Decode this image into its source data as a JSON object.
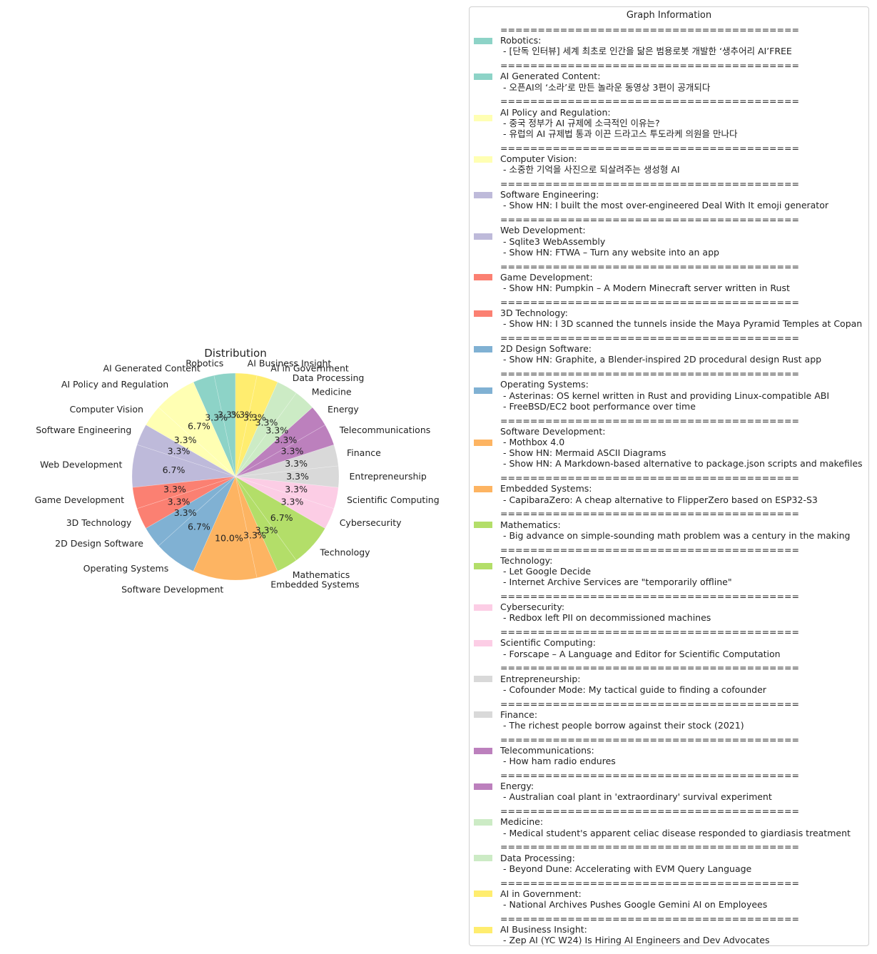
{
  "chart_data": {
    "type": "pie",
    "title": "Distribution",
    "start_angle_deg": 90,
    "direction": "counterclockwise",
    "slices": [
      {
        "label": "Robotics",
        "value": 1,
        "pct_label": "3.3%",
        "color": "#8dd3c7"
      },
      {
        "label": "AI Generated Content",
        "value": 1,
        "pct_label": "3.3%",
        "color": "#8dd3c7"
      },
      {
        "label": "AI Policy and Regulation",
        "value": 2,
        "pct_label": "6.7%",
        "color": "#ffffb3"
      },
      {
        "label": "Computer Vision",
        "value": 1,
        "pct_label": "3.3%",
        "color": "#ffffb3"
      },
      {
        "label": "Software Engineering",
        "value": 1,
        "pct_label": "3.3%",
        "color": "#bebada"
      },
      {
        "label": "Web Development",
        "value": 2,
        "pct_label": "6.7%",
        "color": "#bebada"
      },
      {
        "label": "Game Development",
        "value": 1,
        "pct_label": "3.3%",
        "color": "#fb8072"
      },
      {
        "label": "3D Technology",
        "value": 1,
        "pct_label": "3.3%",
        "color": "#fb8072"
      },
      {
        "label": "2D Design Software",
        "value": 1,
        "pct_label": "3.3%",
        "color": "#80b1d3"
      },
      {
        "label": "Operating Systems",
        "value": 2,
        "pct_label": "6.7%",
        "color": "#80b1d3"
      },
      {
        "label": "Software Development",
        "value": 3,
        "pct_label": "10.0%",
        "color": "#fdb462"
      },
      {
        "label": "Embedded Systems",
        "value": 1,
        "pct_label": "3.3%",
        "color": "#fdb462"
      },
      {
        "label": "Mathematics",
        "value": 1,
        "pct_label": "3.3%",
        "color": "#b3de69"
      },
      {
        "label": "Technology",
        "value": 2,
        "pct_label": "6.7%",
        "color": "#b3de69"
      },
      {
        "label": "Cybersecurity",
        "value": 1,
        "pct_label": "3.3%",
        "color": "#fccde5"
      },
      {
        "label": "Scientific Computing",
        "value": 1,
        "pct_label": "3.3%",
        "color": "#fccde5"
      },
      {
        "label": "Entrepreneurship",
        "value": 1,
        "pct_label": "3.3%",
        "color": "#d9d9d9"
      },
      {
        "label": "Finance",
        "value": 1,
        "pct_label": "3.3%",
        "color": "#d9d9d9"
      },
      {
        "label": "Telecommunications",
        "value": 1,
        "pct_label": "3.3%",
        "color": "#bc80bd"
      },
      {
        "label": "Energy",
        "value": 1,
        "pct_label": "3.3%",
        "color": "#bc80bd"
      },
      {
        "label": "Medicine",
        "value": 1,
        "pct_label": "3.3%",
        "color": "#ccebc5"
      },
      {
        "label": "Data Processing",
        "value": 1,
        "pct_label": "3.3%",
        "color": "#ccebc5"
      },
      {
        "label": "AI in Government",
        "value": 1,
        "pct_label": "3.3%",
        "color": "#ffed6f"
      },
      {
        "label": "AI Business Insight",
        "value": 1,
        "pct_label": "3.3%",
        "color": "#ffed6f"
      }
    ],
    "legend_placement": "right"
  },
  "legend": {
    "title": "Graph Information",
    "separator": "========================================",
    "entries": [
      {
        "color": "#8dd3c7",
        "lines": [
          "Robotics:",
          " - [단독 인터뷰] 세계 최초로 인간을 닮은 범용로봇 개발한 ‘생추어리 AI’FREE"
        ]
      },
      {
        "color": "#8dd3c7",
        "lines": [
          "AI Generated Content:",
          " - 오픈AI의 ‘소라’로 만든 놀라운 동영상 3편이 공개되다"
        ]
      },
      {
        "color": "#ffffb3",
        "lines": [
          "AI Policy and Regulation:",
          " - 중국 정부가 AI 규제에 소극적인 이유는?",
          " - 유럽의 AI 규제법 통과 이끈 드라고스 투도라케 의원을 만나다"
        ]
      },
      {
        "color": "#ffffb3",
        "lines": [
          "Computer Vision:",
          " - 소중한 기억을 사진으로 되살려주는 생성형 AI"
        ]
      },
      {
        "color": "#bebada",
        "lines": [
          "Software Engineering:",
          " - Show HN: I built the most over-engineered Deal With It emoji generator"
        ]
      },
      {
        "color": "#bebada",
        "lines": [
          "Web Development:",
          " - Sqlite3 WebAssembly",
          " - Show HN: FTWA – Turn any website into an app"
        ]
      },
      {
        "color": "#fb8072",
        "lines": [
          "Game Development:",
          " - Show HN: Pumpkin – A Modern Minecraft server written in Rust"
        ]
      },
      {
        "color": "#fb8072",
        "lines": [
          "3D Technology:",
          " - Show HN: I 3D scanned the tunnels inside the Maya Pyramid Temples at Copan"
        ]
      },
      {
        "color": "#80b1d3",
        "lines": [
          "2D Design Software:",
          " - Show HN: Graphite, a Blender-inspired 2D procedural design Rust app"
        ]
      },
      {
        "color": "#80b1d3",
        "lines": [
          "Operating Systems:",
          " - Asterinas: OS kernel written in Rust and providing Linux-compatible ABI",
          " - FreeBSD/EC2 boot performance over time"
        ]
      },
      {
        "color": "#fdb462",
        "lines": [
          "Software Development:",
          " - Mothbox 4.0",
          " - Show HN: Mermaid ASCII Diagrams",
          " - Show HN: A Markdown-based alternative to package.json scripts and makefiles"
        ]
      },
      {
        "color": "#fdb462",
        "lines": [
          "Embedded Systems:",
          " - CapibaraZero: A cheap alternative to FlipperZero based on ESP32-S3"
        ]
      },
      {
        "color": "#b3de69",
        "lines": [
          "Mathematics:",
          " - Big advance on simple-sounding math problem was a century in the making"
        ]
      },
      {
        "color": "#b3de69",
        "lines": [
          "Technology:",
          " - Let Google Decide",
          " - Internet Archive Services are \"temporarily offline\""
        ]
      },
      {
        "color": "#fccde5",
        "lines": [
          "Cybersecurity:",
          " - Redbox left PII on decommissioned machines"
        ]
      },
      {
        "color": "#fccde5",
        "lines": [
          "Scientific Computing:",
          " - Forscape – A Language and Editor for Scientific Computation"
        ]
      },
      {
        "color": "#d9d9d9",
        "lines": [
          "Entrepreneurship:",
          " - Cofounder Mode: My tactical guide to finding a cofounder"
        ]
      },
      {
        "color": "#d9d9d9",
        "lines": [
          "Finance:",
          " - The richest people borrow against their stock (2021)"
        ]
      },
      {
        "color": "#bc80bd",
        "lines": [
          "Telecommunications:",
          " - How ham radio endures"
        ]
      },
      {
        "color": "#bc80bd",
        "lines": [
          "Energy:",
          " - Australian coal plant in 'extraordinary' survival experiment"
        ]
      },
      {
        "color": "#ccebc5",
        "lines": [
          "Medicine:",
          " - Medical student's apparent celiac disease responded to giardiasis treatment"
        ]
      },
      {
        "color": "#ccebc5",
        "lines": [
          "Data Processing:",
          " - Beyond Dune: Accelerating with EVM Query Language"
        ]
      },
      {
        "color": "#ffed6f",
        "lines": [
          "AI in Government:",
          " - National Archives Pushes Google Gemini AI on Employees"
        ]
      },
      {
        "color": "#ffed6f",
        "lines": [
          "AI Business Insight:",
          " - Zep AI (YC W24) Is Hiring AI Engineers and Dev Advocates"
        ]
      }
    ]
  }
}
